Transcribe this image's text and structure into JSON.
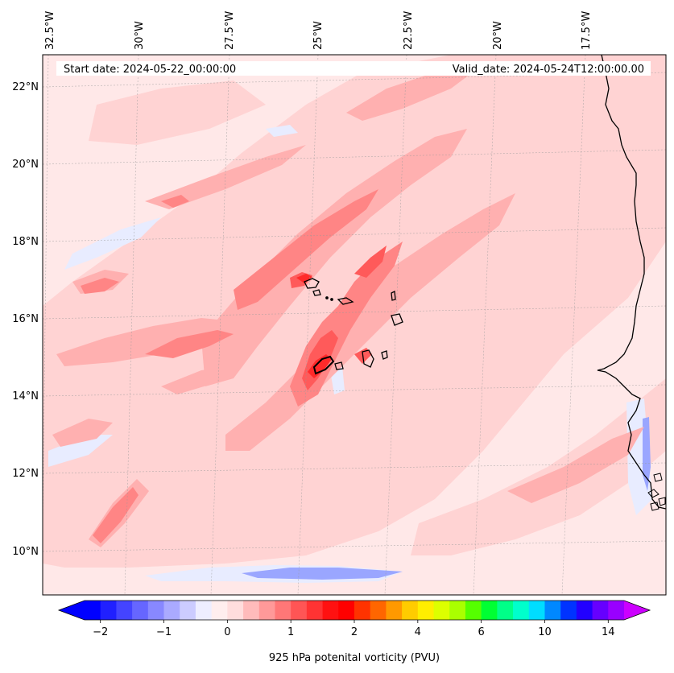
{
  "header": {
    "start_date": "Start date: 2024-05-22_00:00:00",
    "valid_date": "Valid_date: 2024-05-24T12:00:00.00"
  },
  "lon_ticks": [
    "32.5°W",
    "30°W",
    "27.5°W",
    "25°W",
    "22.5°W",
    "20°W",
    "17.5°W"
  ],
  "lat_ticks": [
    "22°N",
    "20°N",
    "18°N",
    "16°N",
    "14°N",
    "12°N",
    "10°N"
  ],
  "colorbar": {
    "label": "925 hPa potenital vorticity (PVU)",
    "tick_labels": [
      "−2",
      "−1",
      "0",
      "1",
      "2",
      "4",
      "6",
      "10",
      "14"
    ],
    "colors": [
      "#0000ff",
      "#2020ff",
      "#4444ff",
      "#6666ff",
      "#8888ff",
      "#aaaaff",
      "#ccccff",
      "#eeeeff",
      "#ffeeee",
      "#ffdddd",
      "#ffbbbb",
      "#ff9999",
      "#ff7777",
      "#ff5555",
      "#ff3333",
      "#ff1111",
      "#ff0000",
      "#ff3300",
      "#ff6600",
      "#ff9900",
      "#ffcc00",
      "#ffee00",
      "#ddff00",
      "#aaff00",
      "#55ff00",
      "#00ff33",
      "#00ff88",
      "#00ffcc",
      "#00ddff",
      "#0088ff",
      "#0033ff",
      "#2200ff",
      "#6600ff",
      "#9900ff"
    ],
    "extend_colors": [
      "#0000ff",
      "#cc00ff"
    ]
  },
  "palette": {
    "background": "#ffe8e8",
    "light": "#ffd3d3",
    "medium": "#ffb0b0",
    "strong": "#ff8585",
    "intense": "#ff5a5a",
    "peak": "#ff2a2a",
    "cool": "#e8ecff",
    "cool_strong": "#9aa6ff"
  }
}
